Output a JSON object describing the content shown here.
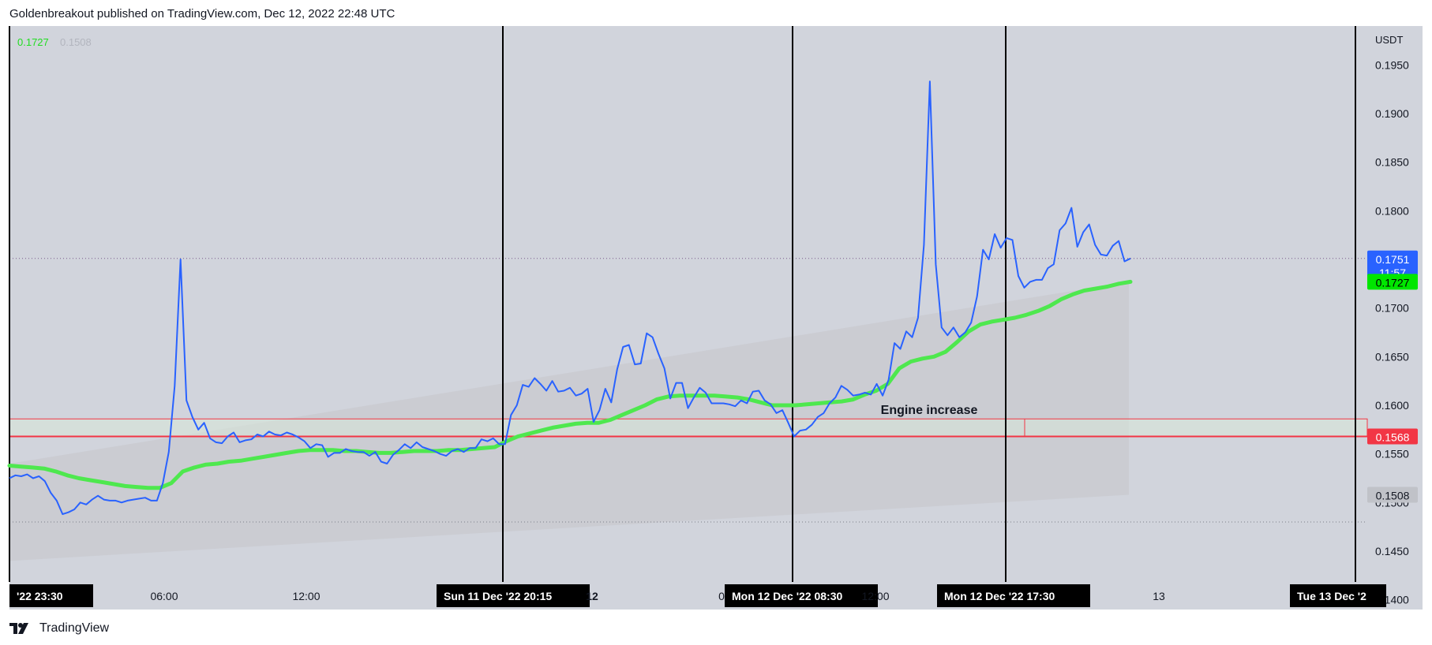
{
  "header": {
    "published_text": "Goldenbreakout published on TradingView.com, Dec 12, 2022 22:48 UTC"
  },
  "footer": {
    "brand": "TradingView",
    "logo_icon": "tradingview-logo-icon"
  },
  "legend": {
    "value_primary": "0.1727",
    "value_secondary": "0.1508"
  },
  "annotation": {
    "label": "Engine increase"
  },
  "badges": {
    "last_price": "0.1751",
    "countdown": "11:57",
    "ma_price": "0.1727",
    "support_price": "0.1568",
    "lower_price": "0.1508"
  },
  "colors": {
    "background": "#d1d4dc",
    "price_line": "#2962ff",
    "ma_line": "#4ee84e",
    "support_line": "#f23645",
    "grey_band": "#c6c7cb",
    "last_badge": "#2962ff",
    "ma_badge": "#00e600",
    "support_badge": "#f23645",
    "lower_badge": "#c0c2c8"
  },
  "chart_data": {
    "type": "line",
    "currency": "USDT",
    "ylim": [
      0.139,
      0.199
    ],
    "y_ticks": [
      "0.1950",
      "0.1900",
      "0.1850",
      "0.1800",
      "0.1750",
      "0.1700",
      "0.1650",
      "0.1600",
      "0.1550",
      "0.1500",
      "0.1450",
      "0.1400"
    ],
    "x_ticks": [
      {
        "label": "'22   23:30",
        "boxed": true
      },
      {
        "label": "06:00",
        "boxed": false
      },
      {
        "label": "12:00",
        "boxed": false
      },
      {
        "label": "Sun 11 Dec '22   20:15",
        "boxed": true
      },
      {
        "label": "12",
        "boxed": false,
        "bold": true
      },
      {
        "label": "0",
        "boxed": false
      },
      {
        "label": "Mon 12 Dec '22   08:30",
        "boxed": true
      },
      {
        "label": "12:00",
        "boxed": false
      },
      {
        "label": "Mon 12 Dec '22   17:30",
        "boxed": true
      },
      {
        "label": "13",
        "boxed": false
      },
      {
        "label": "1",
        "boxed": false
      },
      {
        "label": "Tue 13 Dec '2",
        "boxed": true
      }
    ],
    "support_level": 0.1568,
    "zone": {
      "top": 0.1586,
      "bottom": 0.1568
    },
    "series": [
      {
        "name": "price",
        "values": [
          0.1525,
          0.1528,
          0.1527,
          0.1529,
          0.1525,
          0.1527,
          0.1522,
          0.151,
          0.1502,
          0.1488,
          0.149,
          0.1493,
          0.15,
          0.1498,
          0.1503,
          0.1507,
          0.1503,
          0.1502,
          0.1502,
          0.15,
          0.1502,
          0.1503,
          0.1504,
          0.1505,
          0.1502,
          0.1502,
          0.152,
          0.1552,
          0.162,
          0.175,
          0.1605,
          0.1588,
          0.1575,
          0.1582,
          0.1566,
          0.1562,
          0.1561,
          0.1568,
          0.1572,
          0.1562,
          0.1564,
          0.1565,
          0.157,
          0.1568,
          0.1573,
          0.157,
          0.1569,
          0.1572,
          0.157,
          0.1567,
          0.1563,
          0.1556,
          0.156,
          0.1559,
          0.1547,
          0.1551,
          0.1551,
          0.1555,
          0.1553,
          0.1552,
          0.1552,
          0.1548,
          0.1552,
          0.1542,
          0.154,
          0.1549,
          0.1554,
          0.156,
          0.1556,
          0.1562,
          0.1557,
          0.1555,
          0.1553,
          0.155,
          0.1548,
          0.1553,
          0.1555,
          0.1552,
          0.1556,
          0.1556,
          0.1565,
          0.1563,
          0.1566,
          0.156,
          0.156,
          0.159,
          0.16,
          0.1621,
          0.1619,
          0.1628,
          0.1622,
          0.1615,
          0.1625,
          0.1614,
          0.1615,
          0.1618,
          0.161,
          0.1612,
          0.1617,
          0.1583,
          0.1595,
          0.1617,
          0.1603,
          0.1637,
          0.166,
          0.1662,
          0.1642,
          0.1643,
          0.1674,
          0.167,
          0.1653,
          0.1638,
          0.1607,
          0.1623,
          0.1623,
          0.1597,
          0.1608,
          0.1618,
          0.1613,
          0.1602,
          0.1602,
          0.1602,
          0.1601,
          0.1599,
          0.1605,
          0.1602,
          0.1614,
          0.1615,
          0.1605,
          0.1601,
          0.1592,
          0.1595,
          0.1582,
          0.1568,
          0.1574,
          0.1575,
          0.158,
          0.1588,
          0.1592,
          0.1602,
          0.1608,
          0.162,
          0.1616,
          0.161,
          0.1611,
          0.1613,
          0.1611,
          0.1622,
          0.161,
          0.1626,
          0.1664,
          0.1658,
          0.1676,
          0.167,
          0.169,
          0.1765,
          0.1933,
          0.1745,
          0.168,
          0.1672,
          0.168,
          0.167,
          0.1675,
          0.1685,
          0.1712,
          0.176,
          0.175,
          0.1776,
          0.1762,
          0.1772,
          0.177,
          0.1733,
          0.1721,
          0.1727,
          0.1729,
          0.1729,
          0.1741,
          0.1745,
          0.178,
          0.1787,
          0.1803,
          0.1763,
          0.1778,
          0.1786,
          0.1765,
          0.1755,
          0.1754,
          0.1764,
          0.1769,
          0.1748,
          0.1751
        ]
      },
      {
        "name": "moving average",
        "values": [
          0.1538,
          0.1537,
          0.1536,
          0.1535,
          0.1532,
          0.1528,
          0.1525,
          0.1523,
          0.1521,
          0.1519,
          0.1517,
          0.1516,
          0.1515,
          0.1515,
          0.152,
          0.1532,
          0.1536,
          0.1539,
          0.154,
          0.1542,
          0.1543,
          0.1545,
          0.1547,
          0.1549,
          0.1551,
          0.1553,
          0.1554,
          0.1554,
          0.1554,
          0.1553,
          0.1553,
          0.1552,
          0.1551,
          0.1551,
          0.1552,
          0.1553,
          0.1553,
          0.1553,
          0.1554,
          0.1554,
          0.1555,
          0.1556,
          0.1557,
          0.1563,
          0.1568,
          0.1571,
          0.1574,
          0.1577,
          0.1579,
          0.1581,
          0.1582,
          0.1582,
          0.1585,
          0.159,
          0.1595,
          0.16,
          0.1606,
          0.1609,
          0.161,
          0.161,
          0.161,
          0.161,
          0.1609,
          0.1608,
          0.1606,
          0.1603,
          0.16,
          0.16,
          0.16,
          0.1601,
          0.1602,
          0.1603,
          0.1604,
          0.1606,
          0.1611,
          0.1615,
          0.1622,
          0.1638,
          0.1645,
          0.1648,
          0.165,
          0.1655,
          0.1665,
          0.1676,
          0.1683,
          0.1686,
          0.1688,
          0.169,
          0.1693,
          0.1697,
          0.1702,
          0.1709,
          0.1714,
          0.1718,
          0.172,
          0.1722,
          0.1725,
          0.1727
        ]
      }
    ]
  }
}
